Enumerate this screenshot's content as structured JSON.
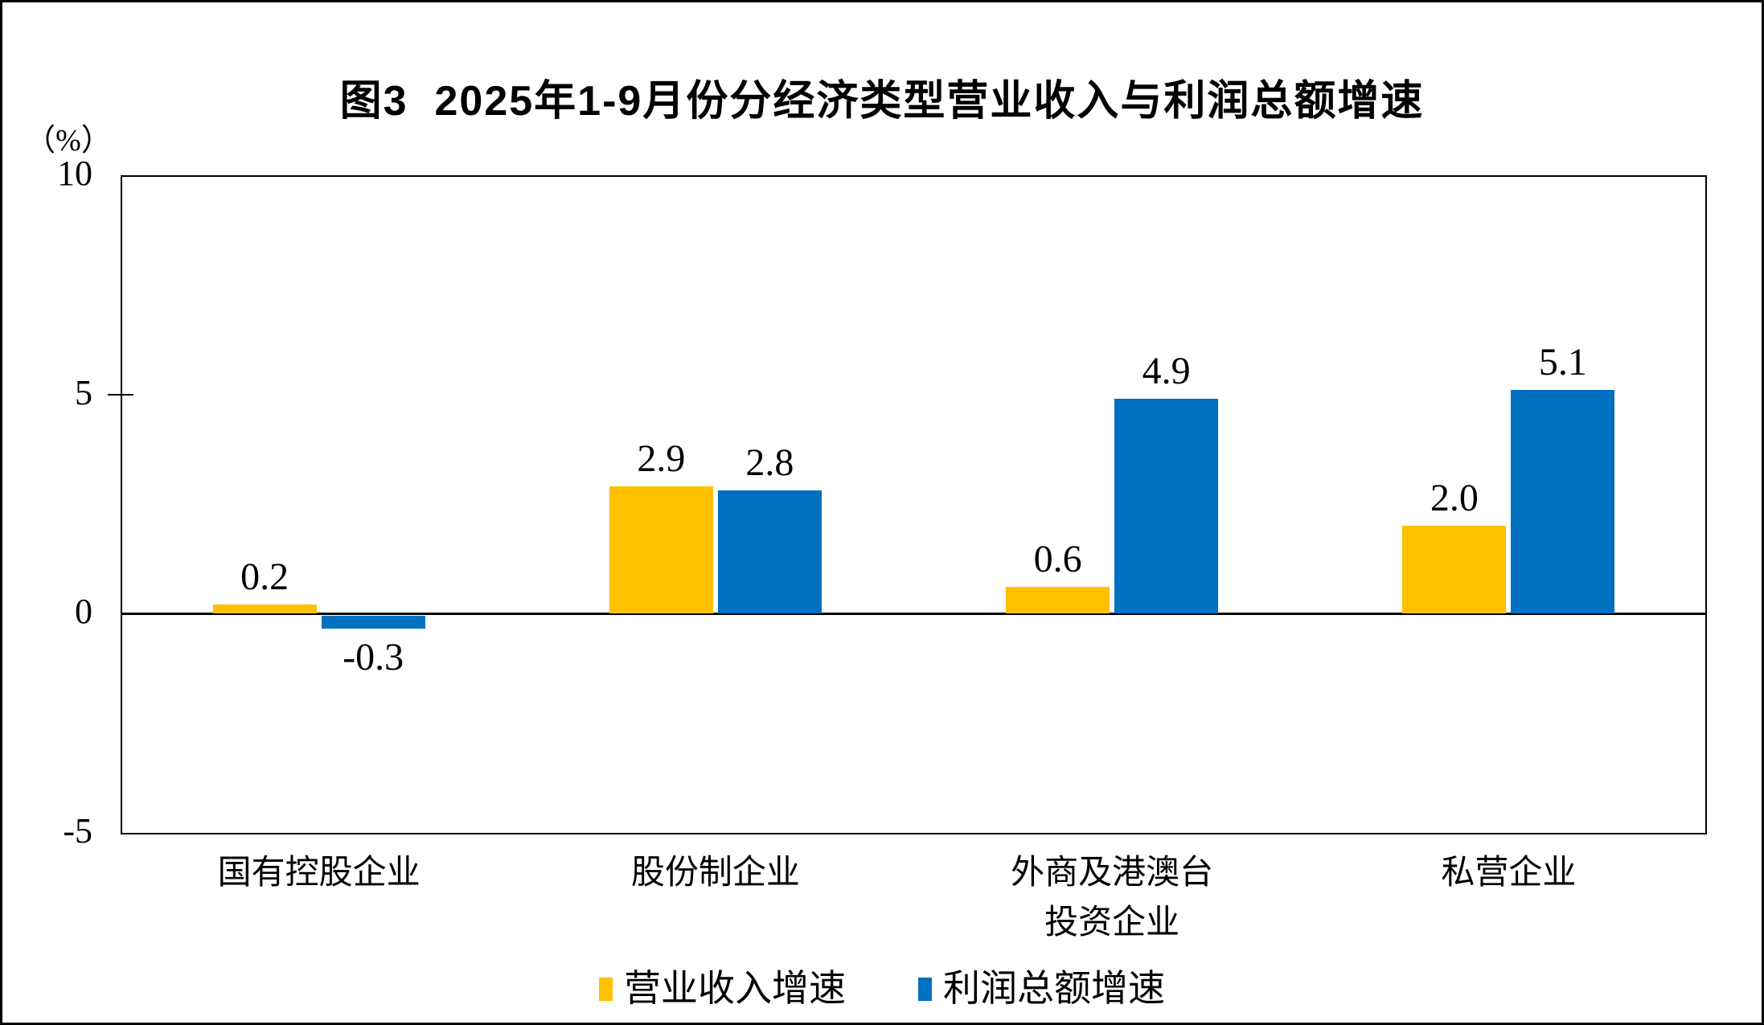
{
  "figure": {
    "title": "图3  2025年1-9月份分经济类型营业收入与利润总额增速",
    "background_color": "#FFFFFF",
    "frame_color": "#000000"
  },
  "y_axis": {
    "unit_label": "（%）",
    "ticks": [
      10,
      5,
      0,
      -5
    ],
    "min": -5,
    "max": 10
  },
  "chart_data": {
    "type": "bar",
    "title": "图3  2025年1-9月份分经济类型营业收入与利润总额增速",
    "categories": [
      "国有控股企业",
      "股份制企业",
      "外商及港澳台\n投资企业",
      "私营企业"
    ],
    "series": [
      {
        "name": "营业收入增速",
        "color": "#FFC000",
        "values": [
          0.2,
          2.9,
          0.6,
          2.0
        ]
      },
      {
        "name": "利润总额增速",
        "color": "#0070C0",
        "values": [
          -0.3,
          2.8,
          4.9,
          5.1
        ]
      }
    ],
    "value_labels": [
      "0.2",
      "-0.3",
      "2.9",
      "2.8",
      "0.6",
      "4.9",
      "2.0",
      "5.1"
    ],
    "xlabel": "",
    "ylabel": "（%）",
    "ylim": [
      -5,
      10
    ],
    "grid": false,
    "legend_position": "bottom"
  }
}
